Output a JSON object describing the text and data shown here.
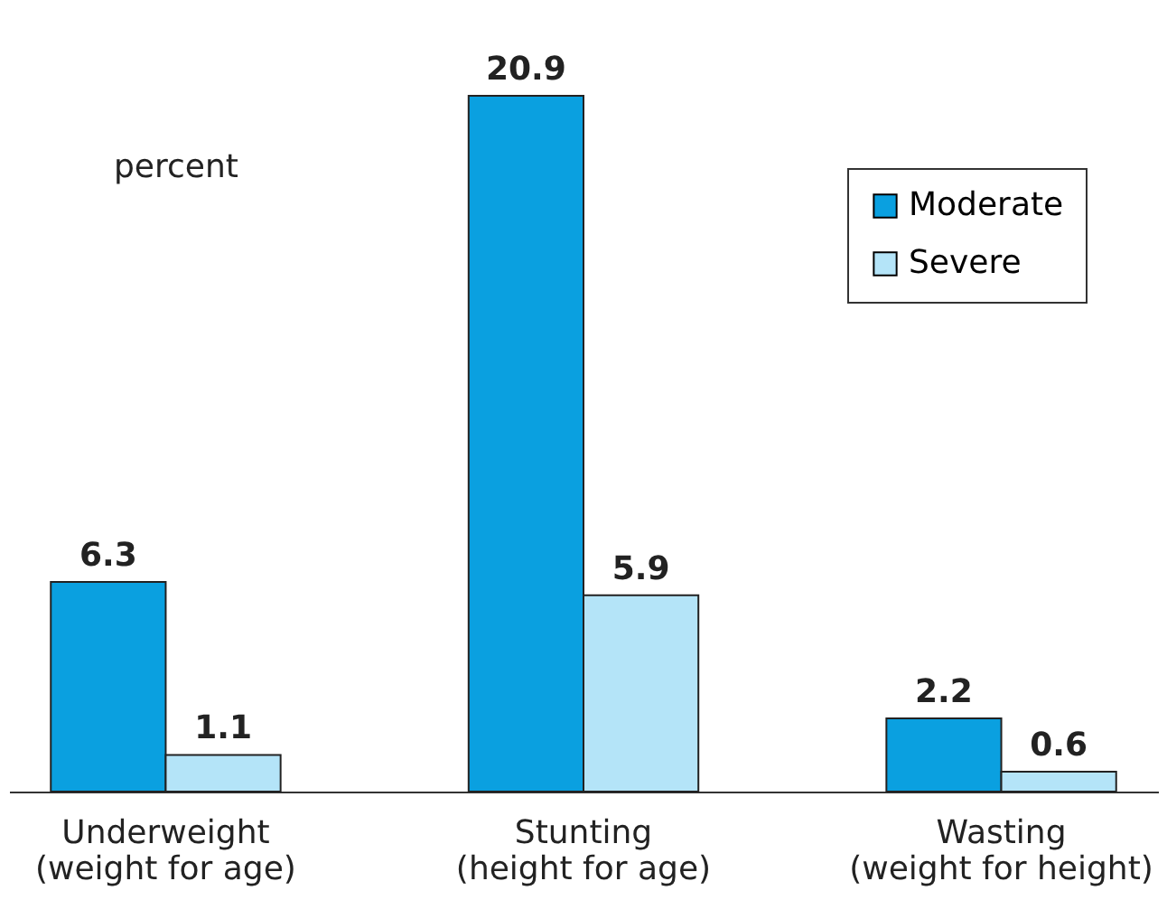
{
  "chart_data": {
    "type": "bar",
    "ylabel": "percent",
    "categories": [
      "Underweight\n(weight for age)",
      "Stunting\n(height for age)",
      "Wasting\n(weight for height)"
    ],
    "series": [
      {
        "name": "Moderate",
        "color": "#0aa0e0",
        "values": [
          6.3,
          20.9,
          2.2
        ]
      },
      {
        "name": "Severe",
        "color": "#b4e4f8",
        "values": [
          1.1,
          5.9,
          0.6
        ]
      }
    ],
    "data_labels": true,
    "legend": "top right"
  }
}
